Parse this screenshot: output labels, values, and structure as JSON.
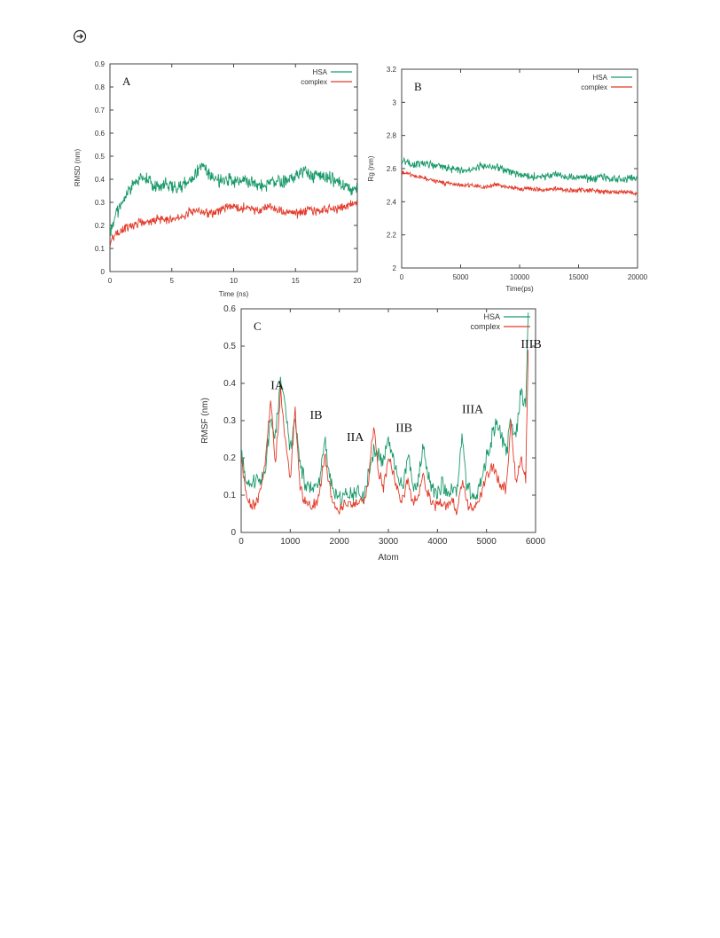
{
  "page": {
    "icon": "circled-arrow-icon"
  },
  "chart_data": [
    {
      "id": "A",
      "type": "line",
      "panel_label": "A",
      "title": "",
      "xlabel": "Time (ns)",
      "ylabel": "RMSD (nm)",
      "xlim": [
        0,
        20
      ],
      "ylim": [
        0,
        0.9
      ],
      "xticks": [
        0,
        5,
        10,
        15,
        20
      ],
      "yticks": [
        0,
        0.1,
        0.2,
        0.3,
        0.4,
        0.5,
        0.6,
        0.7,
        0.8,
        0.9
      ],
      "grid": false,
      "legend": "top-right",
      "series": [
        {
          "name": "HSA",
          "color": "#1a9a6a",
          "x": [
            0,
            0.5,
            1,
            1.5,
            2,
            2.5,
            3,
            3.5,
            4,
            4.5,
            5,
            5.5,
            6,
            6.5,
            7,
            7.5,
            8,
            8.5,
            9,
            9.5,
            10,
            10.5,
            11,
            11.5,
            12,
            12.5,
            13,
            13.5,
            14,
            14.5,
            15,
            15.5,
            16,
            16.5,
            17,
            17.5,
            18,
            18.5,
            19,
            19.5,
            20
          ],
          "y": [
            0.17,
            0.25,
            0.3,
            0.34,
            0.38,
            0.41,
            0.4,
            0.38,
            0.37,
            0.38,
            0.37,
            0.36,
            0.38,
            0.4,
            0.43,
            0.46,
            0.42,
            0.4,
            0.39,
            0.4,
            0.39,
            0.38,
            0.4,
            0.39,
            0.38,
            0.37,
            0.39,
            0.38,
            0.39,
            0.4,
            0.42,
            0.43,
            0.42,
            0.41,
            0.42,
            0.41,
            0.4,
            0.38,
            0.37,
            0.35,
            0.38
          ]
        },
        {
          "name": "complex",
          "color": "#e23b2a",
          "x": [
            0,
            0.5,
            1,
            1.5,
            2,
            2.5,
            3,
            3.5,
            4,
            4.5,
            5,
            5.5,
            6,
            6.5,
            7,
            7.5,
            8,
            8.5,
            9,
            9.5,
            10,
            10.5,
            11,
            11.5,
            12,
            12.5,
            13,
            13.5,
            14,
            14.5,
            15,
            15.5,
            16,
            16.5,
            17,
            17.5,
            18,
            18.5,
            19,
            19.5,
            20
          ],
          "y": [
            0.13,
            0.16,
            0.18,
            0.19,
            0.2,
            0.22,
            0.21,
            0.22,
            0.23,
            0.22,
            0.23,
            0.24,
            0.24,
            0.26,
            0.27,
            0.26,
            0.25,
            0.26,
            0.27,
            0.28,
            0.28,
            0.27,
            0.28,
            0.27,
            0.26,
            0.27,
            0.28,
            0.27,
            0.26,
            0.26,
            0.25,
            0.26,
            0.27,
            0.26,
            0.27,
            0.27,
            0.28,
            0.27,
            0.28,
            0.29,
            0.31
          ]
        }
      ]
    },
    {
      "id": "B",
      "type": "line",
      "panel_label": "B",
      "title": "",
      "xlabel": "Time(ps)",
      "ylabel": "Rg (nm)",
      "xlim": [
        0,
        20000
      ],
      "ylim": [
        2,
        3.2
      ],
      "xticks": [
        0,
        5000,
        10000,
        15000,
        20000
      ],
      "yticks": [
        2,
        2.2,
        2.4,
        2.6,
        2.8,
        3,
        3.2
      ],
      "grid": false,
      "legend": "top-right",
      "series": [
        {
          "name": "HSA",
          "color": "#1a9a6a",
          "x": [
            0,
            1000,
            2000,
            3000,
            4000,
            5000,
            6000,
            7000,
            8000,
            9000,
            10000,
            11000,
            12000,
            13000,
            14000,
            15000,
            16000,
            17000,
            18000,
            19000,
            20000
          ],
          "y": [
            2.65,
            2.62,
            2.63,
            2.62,
            2.6,
            2.59,
            2.6,
            2.62,
            2.61,
            2.59,
            2.56,
            2.55,
            2.55,
            2.56,
            2.55,
            2.55,
            2.54,
            2.55,
            2.54,
            2.54,
            2.54
          ]
        },
        {
          "name": "complex",
          "color": "#e23b2a",
          "x": [
            0,
            1000,
            2000,
            3000,
            4000,
            5000,
            6000,
            7000,
            8000,
            9000,
            10000,
            11000,
            12000,
            13000,
            14000,
            15000,
            16000,
            17000,
            18000,
            19000,
            20000
          ],
          "y": [
            2.58,
            2.56,
            2.54,
            2.52,
            2.51,
            2.5,
            2.5,
            2.49,
            2.5,
            2.49,
            2.48,
            2.48,
            2.47,
            2.48,
            2.47,
            2.47,
            2.47,
            2.46,
            2.46,
            2.46,
            2.45
          ]
        }
      ]
    },
    {
      "id": "C",
      "type": "line",
      "panel_label": "C",
      "title": "",
      "xlabel": "Atom",
      "ylabel": "RMSF (nm)",
      "xlim": [
        0,
        6000
      ],
      "ylim": [
        0,
        0.6
      ],
      "xticks": [
        0,
        1000,
        2000,
        3000,
        4000,
        5000,
        6000
      ],
      "yticks": [
        0,
        0.1,
        0.2,
        0.3,
        0.4,
        0.5,
        0.6
      ],
      "grid": false,
      "legend": "top-right",
      "annotations": [
        {
          "text": "IA",
          "x": 600,
          "y": 0.385
        },
        {
          "text": "IB",
          "x": 1400,
          "y": 0.305
        },
        {
          "text": "IIA",
          "x": 2150,
          "y": 0.245
        },
        {
          "text": "IIB",
          "x": 3150,
          "y": 0.27
        },
        {
          "text": "IIIA",
          "x": 4500,
          "y": 0.32
        },
        {
          "text": "IIIB",
          "x": 5700,
          "y": 0.495
        }
      ],
      "series": [
        {
          "name": "HSA",
          "color": "#1a9a6a",
          "x": [
            0,
            100,
            200,
            300,
            400,
            500,
            600,
            700,
            800,
            900,
            1000,
            1100,
            1200,
            1300,
            1400,
            1500,
            1600,
            1700,
            1800,
            1900,
            2000,
            2100,
            2200,
            2300,
            2400,
            2500,
            2600,
            2700,
            2800,
            2900,
            3000,
            3100,
            3200,
            3300,
            3400,
            3500,
            3600,
            3700,
            3800,
            3900,
            4000,
            4100,
            4200,
            4300,
            4400,
            4500,
            4600,
            4700,
            4800,
            4900,
            5000,
            5100,
            5200,
            5300,
            5400,
            5500,
            5600,
            5700,
            5800,
            5850
          ],
          "y": [
            0.22,
            0.14,
            0.12,
            0.15,
            0.14,
            0.18,
            0.3,
            0.25,
            0.42,
            0.33,
            0.22,
            0.3,
            0.18,
            0.14,
            0.11,
            0.12,
            0.14,
            0.25,
            0.15,
            0.11,
            0.09,
            0.1,
            0.11,
            0.1,
            0.12,
            0.1,
            0.16,
            0.22,
            0.2,
            0.18,
            0.25,
            0.2,
            0.15,
            0.12,
            0.22,
            0.12,
            0.14,
            0.24,
            0.15,
            0.12,
            0.11,
            0.13,
            0.1,
            0.12,
            0.11,
            0.26,
            0.13,
            0.1,
            0.09,
            0.15,
            0.2,
            0.25,
            0.3,
            0.27,
            0.21,
            0.3,
            0.26,
            0.38,
            0.33,
            0.59
          ]
        },
        {
          "name": "complex",
          "color": "#e23b2a",
          "x": [
            0,
            100,
            200,
            300,
            400,
            500,
            600,
            700,
            800,
            900,
            1000,
            1100,
            1200,
            1300,
            1400,
            1500,
            1600,
            1700,
            1800,
            1900,
            2000,
            2100,
            2200,
            2300,
            2400,
            2500,
            2600,
            2700,
            2800,
            2900,
            3000,
            3100,
            3200,
            3300,
            3400,
            3500,
            3600,
            3700,
            3800,
            3900,
            4000,
            4100,
            4200,
            4300,
            4400,
            4500,
            4600,
            4700,
            4800,
            4900,
            5000,
            5100,
            5200,
            5300,
            5400,
            5500,
            5600,
            5700,
            5800,
            5850
          ],
          "y": [
            0.2,
            0.1,
            0.07,
            0.08,
            0.11,
            0.2,
            0.36,
            0.18,
            0.38,
            0.25,
            0.14,
            0.33,
            0.12,
            0.08,
            0.07,
            0.08,
            0.1,
            0.21,
            0.12,
            0.07,
            0.06,
            0.07,
            0.08,
            0.07,
            0.09,
            0.08,
            0.14,
            0.29,
            0.16,
            0.12,
            0.2,
            0.16,
            0.1,
            0.09,
            0.14,
            0.08,
            0.09,
            0.15,
            0.1,
            0.08,
            0.07,
            0.08,
            0.07,
            0.08,
            0.06,
            0.14,
            0.08,
            0.07,
            0.07,
            0.1,
            0.15,
            0.18,
            0.16,
            0.12,
            0.12,
            0.29,
            0.13,
            0.2,
            0.14,
            0.49
          ]
        }
      ]
    }
  ]
}
